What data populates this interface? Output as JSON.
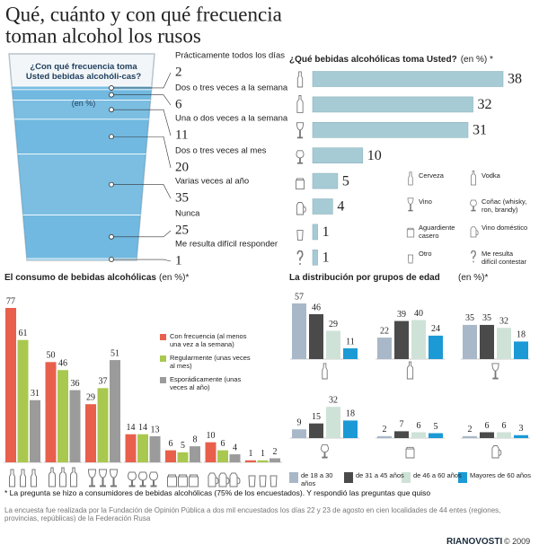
{
  "title": [
    "Qué, cuánto y con qué frecuencia",
    "toman alcohol los rusos"
  ],
  "chart_data": [
    {
      "type": "glass",
      "title": "¿Con qué frecuencia toma Usted bebidas alcohóli-cas?",
      "subtitle": "(en %)",
      "categories": [
        "Prácticamente todos los días",
        "Dos o tres veces a la semana",
        "Una o dos veces a la semana",
        "Dos o tres veces al mes",
        "Varias  veces al año",
        "Nunca",
        "Me resulta difícil responder"
      ],
      "values": [
        2,
        6,
        11,
        20,
        35,
        25,
        1
      ],
      "color": "#3a9fd6"
    },
    {
      "type": "hbar",
      "title": "¿Qué bebidas alcohólicas toma Usted?",
      "subtitle": "(en %) *",
      "categories": [
        "Cerveza",
        "Vodka",
        "Vino",
        "Coñac (whisky, ron, brandy)",
        "Aguardiente casero",
        "Vino doméstico",
        "Otro",
        "Me resulta difícil contestar"
      ],
      "values": [
        38,
        32,
        31,
        10,
        5,
        4,
        1,
        1
      ],
      "color": "#a6cbd5"
    },
    {
      "type": "groupedbar",
      "title": "El consumo de bebidas alcohólicas",
      "subtitle": "(en %)*",
      "categories": [
        null,
        null,
        null,
        null,
        null,
        null,
        null
      ],
      "series": [
        {
          "name": "Con frecuencia (al menos una vez a la semana)",
          "color": "#e8604c",
          "values": [
            77,
            50,
            29,
            14,
            6,
            10,
            1
          ]
        },
        {
          "name": "Regularmente (unas veces al mes)",
          "color": "#a9c84f",
          "values": [
            61,
            46,
            37,
            14,
            5,
            6,
            1
          ]
        },
        {
          "name": "Esporádicamente (unas veces al año)",
          "color": "#9b9b9b",
          "values": [
            31,
            36,
            51,
            13,
            8,
            4,
            2
          ]
        }
      ]
    },
    {
      "type": "groupedbar",
      "title": "La distribución por grupos de edad",
      "subtitle": "(en %)*",
      "categories": [
        null,
        null,
        null,
        null,
        null,
        null
      ],
      "series": [
        {
          "name": "de 18 a 30 años",
          "color": "#a9b8c8",
          "values": [
            57,
            22,
            35,
            9,
            2,
            2
          ]
        },
        {
          "name": "de 31 a 45 años",
          "color": "#4a4a4a",
          "values": [
            46,
            39,
            35,
            15,
            7,
            6
          ]
        },
        {
          "name": "de 46 a 60 años",
          "color": "#cfe2d7",
          "values": [
            29,
            40,
            32,
            32,
            6,
            6
          ]
        },
        {
          "name": "Mayores de 60 años",
          "color": "#1b9ad6",
          "values": [
            11,
            24,
            18,
            18,
            5,
            3
          ]
        }
      ]
    }
  ],
  "footnote": "* La pregunta se hizo a consumidores de bebidas alcohólicas (75% de los encuestados). Y respondió las preguntas que quiso",
  "source": "La encuesta fue realizada por la Fundación de Opinión Pública a dos mil encuestados los días 22 y 23 de agosto en cien localidades de 44 entes (regiones, provincias, repúblicas) de la Federación Rusa",
  "brand": "RIANOVOSTI",
  "copyright": "© 2009"
}
